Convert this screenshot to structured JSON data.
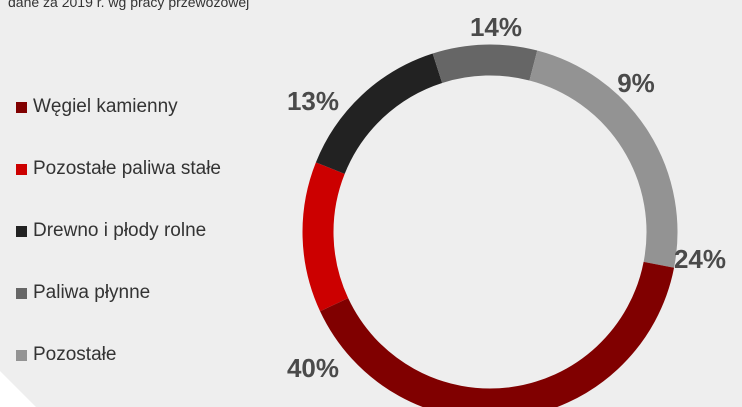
{
  "subtitle": "dane za 2019 r. wg pracy przewozowej",
  "colors": {
    "background_panel": "#eeeeee",
    "page": "#ffffff"
  },
  "chart_data": {
    "type": "pie",
    "variant": "donut",
    "title": "",
    "legend_position": "left",
    "categories": [
      "Węgiel kamienny",
      "Pozostałe paliwa stałe",
      "Drewno i płody rolne",
      "Paliwa płynne",
      "Pozostałe"
    ],
    "values": [
      40,
      13,
      14,
      9,
      24
    ],
    "labels": [
      "40%",
      "13%",
      "14%",
      "9%",
      "24%"
    ],
    "colors": [
      "#800000",
      "#cc0000",
      "#222222",
      "#666666",
      "#939393"
    ]
  }
}
